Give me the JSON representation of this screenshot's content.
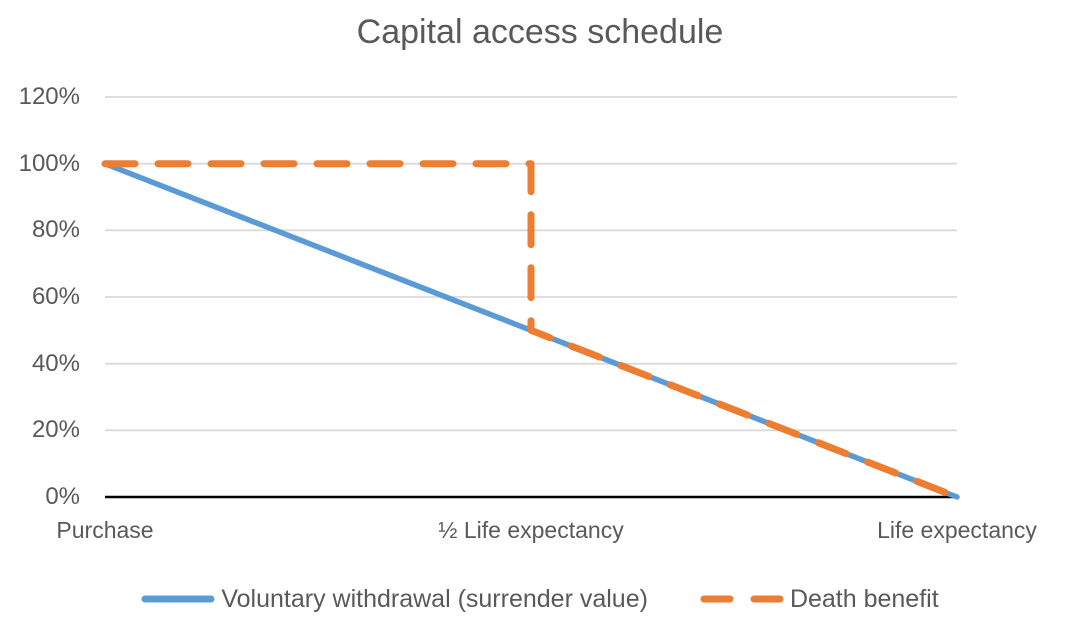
{
  "chart_data": {
    "type": "line",
    "title": "Capital access schedule",
    "categories": [
      "Purchase",
      "½ Life expectancy",
      "Life expectancy"
    ],
    "category_positions": [
      0,
      0.5,
      1
    ],
    "yticks": [
      "0%",
      "20%",
      "40%",
      "60%",
      "80%",
      "100%",
      "120%"
    ],
    "ytick_values": [
      0,
      20,
      40,
      60,
      80,
      100,
      120
    ],
    "ylim": [
      0,
      120
    ],
    "grid": "horizontal",
    "legend_position": "bottom",
    "series": [
      {
        "name": "Voluntary withdrawal (surrender value)",
        "slug": "voluntary-withdrawal",
        "color": "#5B9BD5",
        "style": "solid",
        "points": [
          [
            0,
            100
          ],
          [
            0.5,
            50
          ],
          [
            1,
            0
          ]
        ]
      },
      {
        "name": "Death benefit",
        "slug": "death-benefit",
        "color": "#ED7D31",
        "style": "dashed",
        "points": [
          [
            0,
            100
          ],
          [
            0.5,
            100
          ],
          [
            0.5,
            50
          ],
          [
            1,
            0
          ]
        ]
      }
    ],
    "colors": {
      "background": "#FFFFFF",
      "grid": "#D9D9D9",
      "axis": "#000000",
      "text": "#595959",
      "title": "#595959"
    }
  }
}
